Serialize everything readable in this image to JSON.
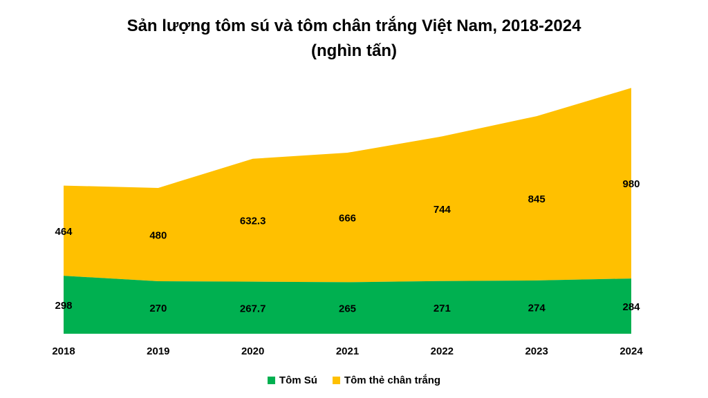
{
  "chart_data": {
    "type": "area",
    "stacked": true,
    "title_line_1": "Sản lượng tôm sú và tôm chân trắng Việt Nam, 2018-2024",
    "title_line_2": "(nghìn tấn)",
    "x": [
      "2018",
      "2019",
      "2020",
      "2021",
      "2022",
      "2023",
      "2024"
    ],
    "series": [
      {
        "name": "Tôm Sú",
        "color": "#00b050",
        "values": [
          298,
          270,
          267.7,
          265,
          271,
          274,
          284
        ],
        "labels": [
          "298",
          "270",
          "267.7",
          "265",
          "271",
          "274",
          "284"
        ]
      },
      {
        "name": "Tôm thẻ chân trắng",
        "color": "#ffc000",
        "values": [
          464,
          480,
          632.3,
          666,
          744,
          845,
          980
        ],
        "labels": [
          "464",
          "480",
          "632.3",
          "666",
          "744",
          "845",
          "980"
        ]
      }
    ],
    "ylim": [
      0,
      1300
    ],
    "grid": false,
    "legend_position": "bottom"
  }
}
